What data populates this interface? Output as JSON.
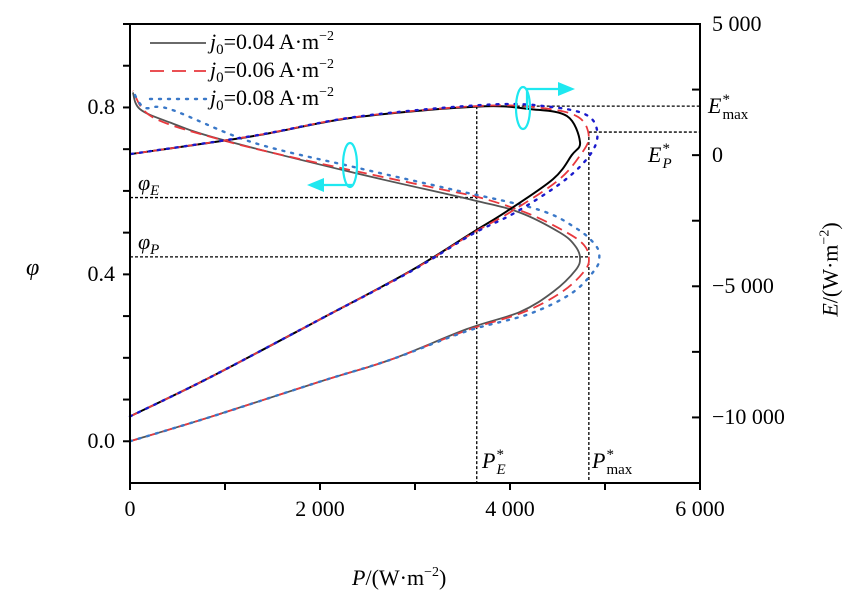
{
  "chart_data": {
    "type": "line",
    "xlabel": {
      "var": "P",
      "unit": "/(W·m",
      "exp": "−2",
      "close": ")"
    },
    "ylabel_left": "φ",
    "ylabel_right": {
      "var": "E",
      "unit": "/(W·m",
      "exp": "−2",
      "close": ")"
    },
    "xlim": [
      0,
      6000
    ],
    "ylim_left": [
      -0.1,
      1.0
    ],
    "ylim_right": [
      -12500,
      5000
    ],
    "x_ticks": [
      0,
      1000,
      2000,
      3000,
      4000,
      5000,
      6000
    ],
    "x_tick_labels": [
      {
        "v": 0,
        "t": "0"
      },
      {
        "v": 2000,
        "t": "2 000"
      },
      {
        "v": 4000,
        "t": "4 000"
      },
      {
        "v": 6000,
        "t": "6 000"
      }
    ],
    "left_ticks": [
      0,
      0.1,
      0.2,
      0.3,
      0.4,
      0.5,
      0.6,
      0.7,
      0.8,
      0.9,
      1.0
    ],
    "left_tick_labels": [
      {
        "v": 0,
        "t": "0.0"
      },
      {
        "v": 0.4,
        "t": "0.4"
      },
      {
        "v": 0.8,
        "t": "0.8"
      }
    ],
    "right_ticks": [
      5000,
      2500,
      0,
      -2500,
      -5000,
      -7500,
      -10000,
      -12500
    ],
    "right_tick_labels": [
      {
        "v": 5000,
        "t": "5 000"
      },
      {
        "v": 0,
        "t": "0"
      },
      {
        "v": -5000,
        "t": "−5 000"
      },
      {
        "v": -10000,
        "t": "−10 000"
      }
    ],
    "legend": {
      "placement": "top-left",
      "items": [
        {
          "var": "j",
          "sub": "0",
          "text": "=0.04 A·m",
          "sup": "−2"
        },
        {
          "var": "j",
          "sub": "0",
          "text": "=0.06 A·m",
          "sup": "−2"
        },
        {
          "var": "j",
          "sub": "0",
          "text": "=0.08 A·m",
          "sup": "−2"
        }
      ]
    },
    "series": [
      {
        "name": "j0=0.04 φ-P",
        "axis": "left",
        "color": "#555555",
        "style": "solid",
        "points": [
          [
            0,
            0
          ],
          [
            842,
            0.058
          ],
          [
            2000,
            0.143
          ],
          [
            2737,
            0.195
          ],
          [
            3547,
            0.269
          ],
          [
            4105,
            0.31
          ],
          [
            4453,
            0.358
          ],
          [
            4690,
            0.41
          ],
          [
            4737,
            0.44
          ],
          [
            4680,
            0.47
          ],
          [
            4526,
            0.5
          ],
          [
            4105,
            0.548
          ],
          [
            3610,
            0.578
          ],
          [
            2347,
            0.644
          ],
          [
            947,
            0.724
          ],
          [
            421,
            0.764
          ],
          [
            105,
            0.796
          ],
          [
            30,
            0.836
          ]
        ]
      },
      {
        "name": "j0=0.06 φ-P",
        "axis": "left",
        "color": "#e8383d",
        "style": "dashed",
        "points": [
          [
            0,
            0
          ],
          [
            842,
            0.058
          ],
          [
            2000,
            0.143
          ],
          [
            2737,
            0.195
          ],
          [
            3547,
            0.266
          ],
          [
            4150,
            0.31
          ],
          [
            4560,
            0.36
          ],
          [
            4790,
            0.41
          ],
          [
            4830,
            0.44
          ],
          [
            4780,
            0.47
          ],
          [
            4600,
            0.5
          ],
          [
            4200,
            0.545
          ],
          [
            3700,
            0.583
          ],
          [
            3232,
            0.606
          ],
          [
            1895,
            0.671
          ],
          [
            1000,
            0.72
          ],
          [
            242,
            0.776
          ],
          [
            30,
            0.84
          ]
        ]
      },
      {
        "name": "j0=0.08 φ-P",
        "axis": "left",
        "color": "#3a78c8",
        "style": "dotted",
        "points": [
          [
            0,
            0
          ],
          [
            842,
            0.058
          ],
          [
            2000,
            0.143
          ],
          [
            2737,
            0.195
          ],
          [
            3547,
            0.264
          ],
          [
            4200,
            0.305
          ],
          [
            4650,
            0.355
          ],
          [
            4890,
            0.41
          ],
          [
            4940,
            0.44
          ],
          [
            4900,
            0.47
          ],
          [
            4700,
            0.51
          ],
          [
            4300,
            0.555
          ],
          [
            3400,
            0.603
          ],
          [
            2400,
            0.655
          ],
          [
            1295,
            0.716
          ],
          [
            420,
            0.796
          ],
          [
            150,
            0.8
          ],
          [
            30,
            0.84
          ]
        ]
      },
      {
        "name": "j0=0.04 E-P",
        "axis": "right",
        "color": "#000000",
        "style": "solid",
        "points": [
          [
            0,
            -9962
          ],
          [
            842,
            -8473
          ],
          [
            2000,
            -6260
          ],
          [
            2947,
            -4427
          ],
          [
            3610,
            -2939
          ],
          [
            3968,
            -2137
          ],
          [
            4453,
            -916
          ],
          [
            4650,
            0
          ],
          [
            4737,
            496
          ],
          [
            4600,
            1489
          ],
          [
            4210,
            1756
          ],
          [
            3650,
            1850
          ],
          [
            2347,
            1430
          ],
          [
            1295,
            725
          ],
          [
            0,
            38
          ]
        ]
      },
      {
        "name": "j0=0.06 E-P",
        "axis": "right",
        "color": "#e8383d",
        "style": "dashed",
        "points": [
          [
            0,
            -9962
          ],
          [
            842,
            -8473
          ],
          [
            2000,
            -6260
          ],
          [
            2947,
            -4440
          ],
          [
            3610,
            -2970
          ],
          [
            4000,
            -2180
          ],
          [
            4500,
            -980
          ],
          [
            4740,
            0
          ],
          [
            4830,
            700
          ],
          [
            4720,
            1450
          ],
          [
            4350,
            1790
          ],
          [
            3700,
            1880
          ],
          [
            2347,
            1440
          ],
          [
            1295,
            730
          ],
          [
            0,
            38
          ]
        ]
      },
      {
        "name": "j0=0.08 E-P",
        "axis": "right",
        "color": "#1a1acc",
        "style": "dotted",
        "points": [
          [
            0,
            -9962
          ],
          [
            842,
            -8473
          ],
          [
            2000,
            -6260
          ],
          [
            2947,
            -4450
          ],
          [
            3610,
            -3000
          ],
          [
            4050,
            -2200
          ],
          [
            4560,
            -1000
          ],
          [
            4840,
            0
          ],
          [
            4920,
            800
          ],
          [
            4820,
            1500
          ],
          [
            4450,
            1830
          ],
          [
            3800,
            1930
          ],
          [
            2400,
            1470
          ],
          [
            1295,
            735
          ],
          [
            0,
            38
          ]
        ]
      }
    ],
    "reference_lines": {
      "phi_E": 0.584,
      "phi_P": 0.442,
      "P_E_star": 3650,
      "P_max_star": 4830,
      "E_max_star": 1870,
      "E_P_star": 880
    },
    "annotations": {
      "phi_E": {
        "var": "φ",
        "sub": "E"
      },
      "phi_P": {
        "var": "φ",
        "sub": "P"
      },
      "P_E_star": {
        "var": "P",
        "sup": "*",
        "sub": "E"
      },
      "P_max_star": {
        "var": "P",
        "sup": "*",
        "sub": "max"
      },
      "E_max_star": {
        "var": "E",
        "sup": "*",
        "sub": "max"
      },
      "E_P_star": {
        "var": "E",
        "sup": "*",
        "sub": "P"
      }
    },
    "arrow_color": "#1ee8f0"
  }
}
